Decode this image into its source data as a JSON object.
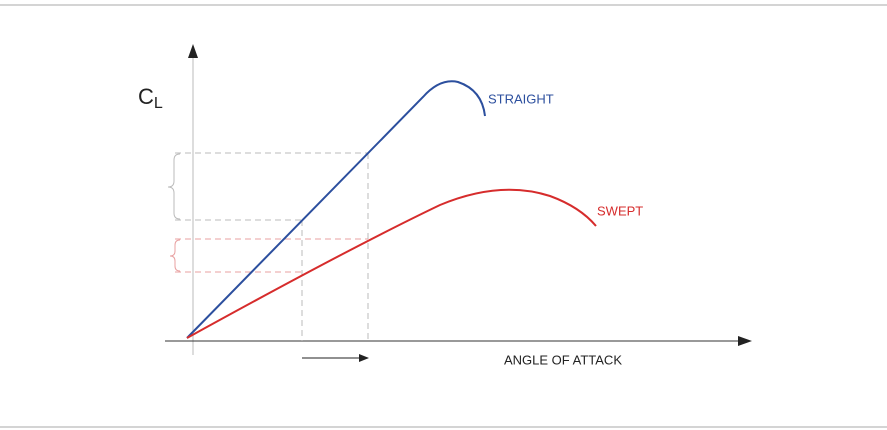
{
  "diagram": {
    "y_axis_label": {
      "main": "C",
      "subscript": "L"
    },
    "x_axis_label": "ANGLE OF ATTACK",
    "curves": [
      {
        "label": "STRAIGHT"
      },
      {
        "label": "SWEPT"
      }
    ]
  }
}
